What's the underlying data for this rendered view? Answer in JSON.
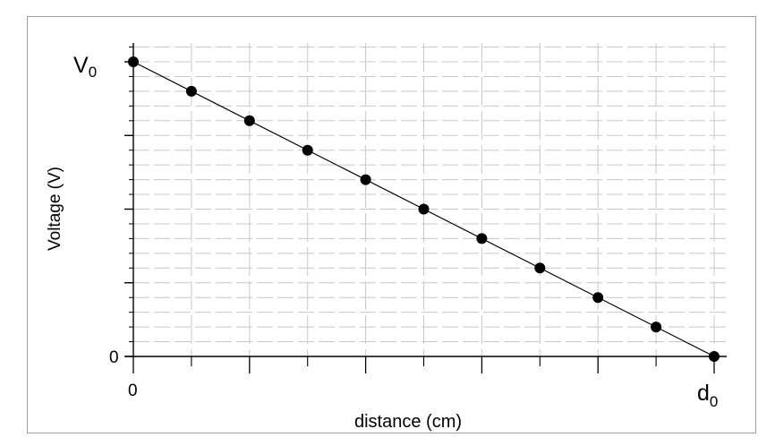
{
  "chart_data": {
    "type": "scatter",
    "xlabel": "distance (cm)",
    "ylabel": "Voltage (V)",
    "x_tick_labels": {
      "start": "0",
      "end_main": "d",
      "end_sub": "0"
    },
    "y_tick_labels": {
      "top_main": "V",
      "top_sub": "0",
      "bottom": "0"
    },
    "xlim": [
      0,
      1
    ],
    "ylim": [
      0,
      1
    ],
    "grid": true,
    "trendline": {
      "x": [
        0,
        1
      ],
      "y": [
        1,
        0
      ]
    },
    "series": [
      {
        "x": [
          0,
          0.1,
          0.2,
          0.3,
          0.4,
          0.5,
          0.6,
          0.7,
          0.8,
          0.9,
          1.0
        ],
        "y": [
          1,
          0.9,
          0.8,
          0.7,
          0.6,
          0.5,
          0.4,
          0.3,
          0.2,
          0.1,
          0
        ]
      }
    ]
  }
}
